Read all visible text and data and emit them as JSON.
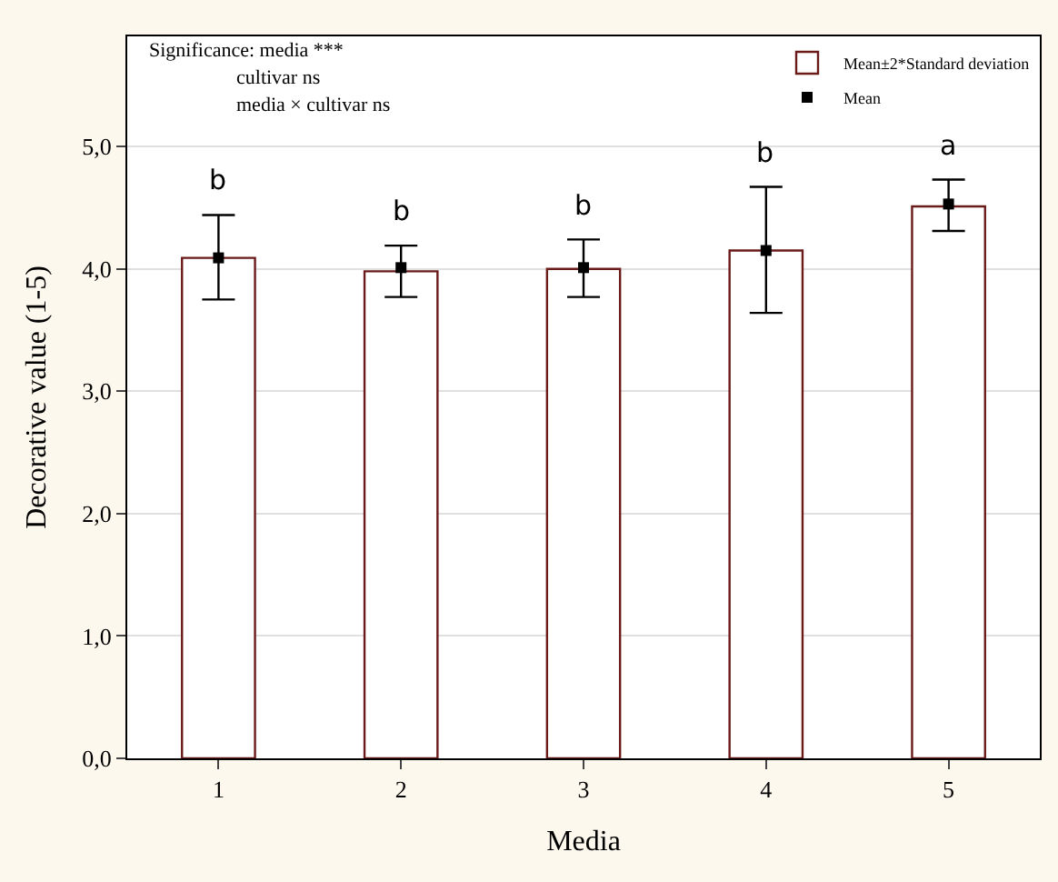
{
  "chart_data": {
    "type": "bar",
    "xlabel": "Media",
    "ylabel": "Decorative value (1-5)",
    "categories": [
      "1",
      "2",
      "3",
      "4",
      "5"
    ],
    "series": [
      {
        "name": "Mean±2*Standard deviation",
        "color": "#ffffff",
        "values": [
          4.09,
          3.98,
          4.0,
          4.15,
          4.51
        ],
        "errors": [
          [
            3.75,
            4.44
          ],
          [
            3.77,
            4.19
          ],
          [
            3.77,
            4.24
          ],
          [
            3.64,
            4.67
          ],
          [
            4.31,
            4.73
          ]
        ],
        "value_labels": [
          "b",
          "b",
          "b",
          "b",
          "a"
        ]
      },
      {
        "name": "Mean",
        "type": "scatter",
        "color": "#000000",
        "values": [
          4.09,
          4.01,
          4.01,
          4.15,
          4.53
        ]
      }
    ],
    "marker": "square",
    "ylim": [
      0,
      5.9
    ],
    "yticks": [
      {
        "value": 0,
        "label": "0,0"
      },
      {
        "value": 1,
        "label": "1,0"
      },
      {
        "value": 2,
        "label": "2,0"
      },
      {
        "value": 3,
        "label": "3,0"
      },
      {
        "value": 4,
        "label": "4,0"
      },
      {
        "value": 5,
        "label": "5,0"
      }
    ],
    "grid": "y",
    "legend": "top right",
    "annotations": [
      "Significance: media ***",
      "cultivar ns",
      "media × cultivar ns"
    ]
  }
}
